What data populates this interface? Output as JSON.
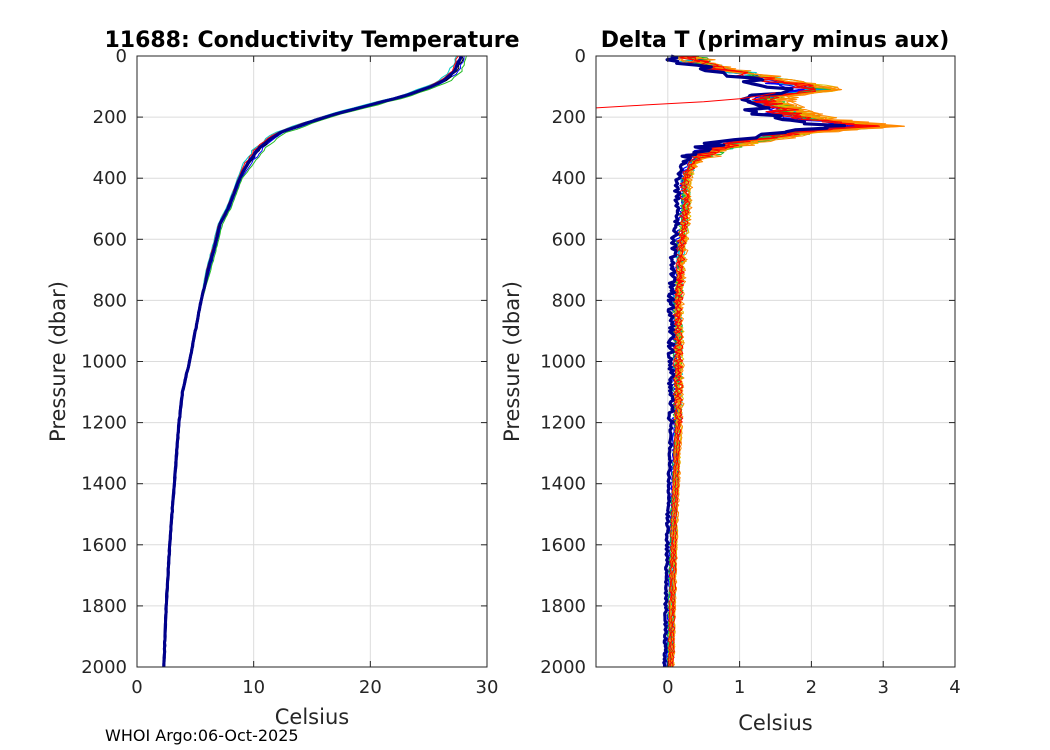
{
  "footer": "WHOI Argo:06-Oct-2025",
  "chart_data": [
    {
      "type": "line",
      "title": "11688: Conductivity Temperature",
      "xlabel": "Celsius",
      "ylabel": "Pressure (dbar)",
      "xlim": [
        0,
        30
      ],
      "ylim": [
        0,
        2000
      ],
      "y_reversed": true,
      "grid": true,
      "xticks": [
        0,
        10,
        20,
        30
      ],
      "xtick_labels": [
        "0",
        "10",
        "20",
        "30"
      ],
      "yticks": [
        0,
        200,
        400,
        600,
        800,
        1000,
        1200,
        1400,
        1600,
        1800,
        2000
      ],
      "ytick_labels": [
        "0",
        "200",
        "400",
        "600",
        "800",
        "1000",
        "1200",
        "1400",
        "1600",
        "1800",
        "2000"
      ],
      "profile": {
        "pressure": [
          0,
          20,
          50,
          80,
          100,
          130,
          160,
          190,
          220,
          250,
          270,
          300,
          350,
          400,
          500,
          550,
          600,
          700,
          800,
          900,
          1000,
          1100,
          1200,
          1400,
          1600,
          1800,
          2000
        ],
        "temperature": [
          27.8,
          27.6,
          27.2,
          26.3,
          25.2,
          23.0,
          20.0,
          17.0,
          14.5,
          12.3,
          11.5,
          10.5,
          9.5,
          8.8,
          7.8,
          7.1,
          6.8,
          6.1,
          5.5,
          5.0,
          4.5,
          3.9,
          3.6,
          3.2,
          2.8,
          2.5,
          2.3
        ]
      },
      "series": [
        {
          "name": "navy",
          "color": "#00008b",
          "offset": 0.0
        },
        {
          "name": "blue",
          "color": "#0000ff",
          "offset": 0.35
        },
        {
          "name": "cyan",
          "color": "#00c8c8",
          "offset": -0.4
        },
        {
          "name": "green",
          "color": "#22bb22",
          "offset": 0.55
        },
        {
          "name": "red",
          "color": "#ff0000",
          "offset": -0.25
        },
        {
          "name": "black",
          "color": "#000000",
          "offset": 0.15
        }
      ]
    },
    {
      "type": "line",
      "title": "Delta T (primary minus aux)",
      "xlabel": "Celsius",
      "ylabel": "Pressure (dbar)",
      "xlim": [
        -1,
        4
      ],
      "ylim": [
        0,
        2000
      ],
      "y_reversed": true,
      "grid": true,
      "xticks": [
        0,
        1,
        2,
        3,
        4
      ],
      "xtick_labels": [
        "0",
        "1",
        "2",
        "3",
        "4"
      ],
      "yticks": [
        0,
        200,
        400,
        600,
        800,
        1000,
        1200,
        1400,
        1600,
        1800,
        2000
      ],
      "ytick_labels": [
        "0",
        "200",
        "400",
        "600",
        "800",
        "1000",
        "1200",
        "1400",
        "1600",
        "1800",
        "2000"
      ],
      "profile": {
        "pressure": [
          0,
          30,
          60,
          90,
          110,
          130,
          150,
          170,
          190,
          210,
          230,
          250,
          280,
          310,
          350,
          400,
          500,
          600,
          800,
          1000,
          1200,
          1500,
          2000
        ],
        "delta": [
          0.1,
          0.35,
          0.9,
          1.5,
          1.9,
          1.3,
          1.2,
          1.4,
          1.5,
          1.9,
          2.6,
          1.6,
          0.9,
          0.4,
          0.25,
          0.15,
          0.15,
          0.1,
          0.05,
          0.05,
          0.05,
          0.0,
          -0.05
        ]
      },
      "series": [
        {
          "name": "navy-bold",
          "color": "#00008b",
          "offset": 0.0,
          "scale": 0.9,
          "width": 3.2
        },
        {
          "name": "blue",
          "color": "#0000ff",
          "offset": 0.08,
          "scale": 1.0,
          "width": 1.2
        },
        {
          "name": "cyan",
          "color": "#00c8c8",
          "offset": 0.12,
          "scale": 1.05,
          "width": 1.0
        },
        {
          "name": "green",
          "color": "#22bb22",
          "offset": 0.1,
          "scale": 1.1,
          "width": 1.0
        },
        {
          "name": "yellow",
          "color": "#e0c000",
          "offset": 0.14,
          "scale": 1.12,
          "width": 1.0
        },
        {
          "name": "orange",
          "color": "#ff8800",
          "offset": 0.15,
          "scale": 1.15,
          "width": 1.0
        },
        {
          "name": "red",
          "color": "#ff0000",
          "offset": 0.12,
          "scale": 1.0,
          "width": 1.0
        }
      ],
      "red_spike": {
        "pressure": [
          170,
          160,
          150,
          140,
          130,
          120
        ],
        "delta": [
          -1.0,
          -0.3,
          0.5,
          1.0,
          1.3,
          1.5
        ],
        "color": "#ff0000"
      }
    }
  ]
}
